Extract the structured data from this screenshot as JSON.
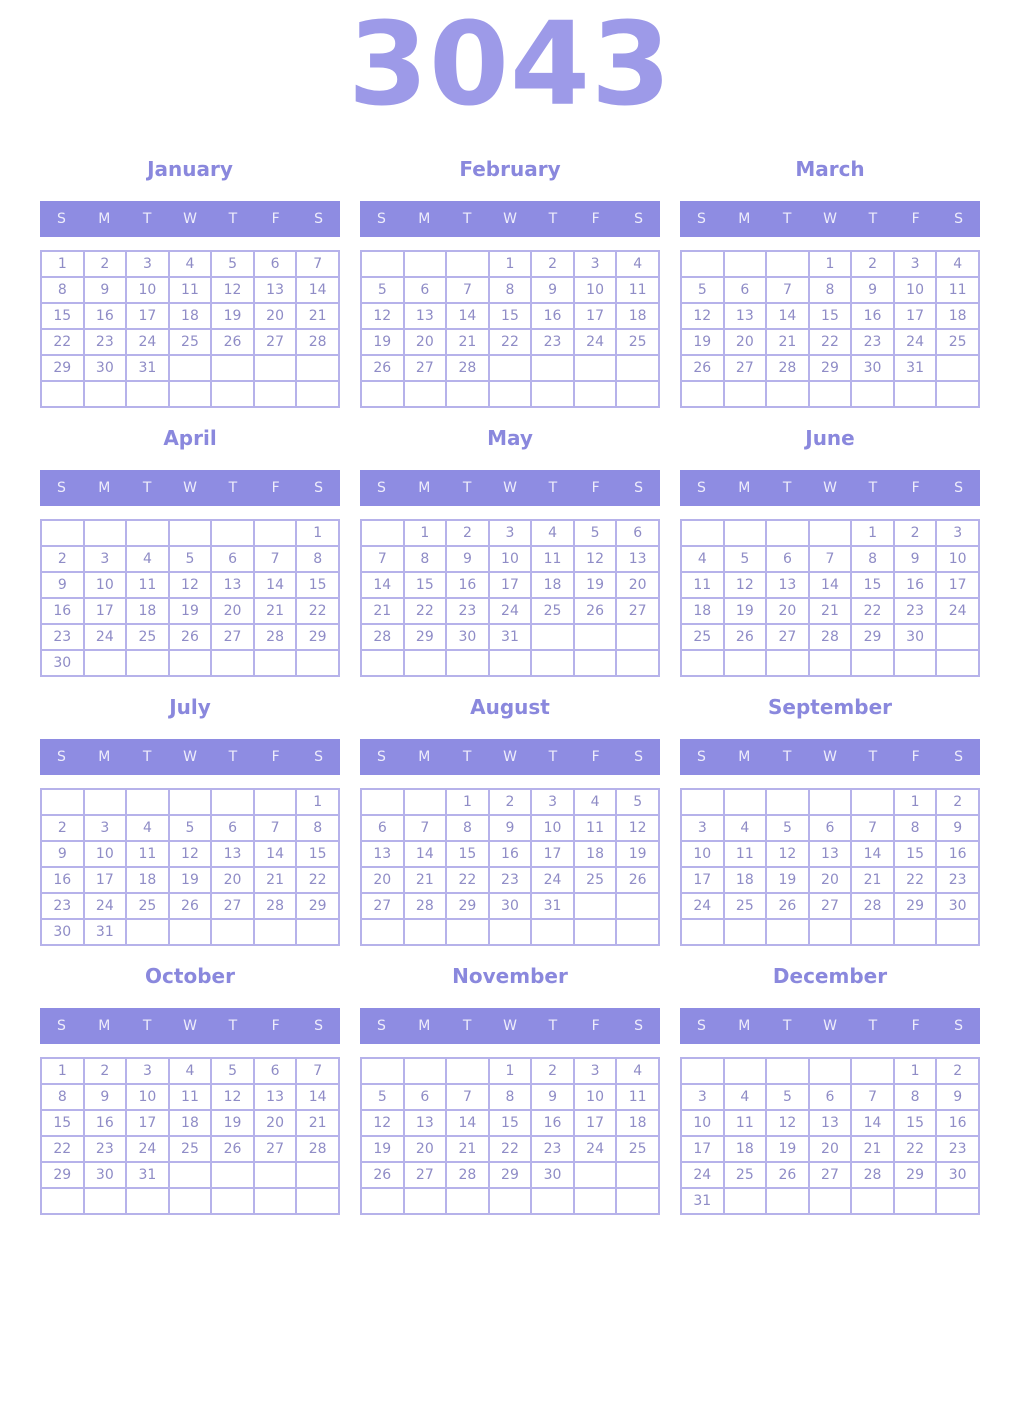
{
  "year_title": "3043",
  "weekday_headers": [
    "S",
    "M",
    "T",
    "W",
    "T",
    "F",
    "S"
  ],
  "colors": {
    "background": "#ffffff",
    "accent": "#8e8ce2",
    "year_title": "#9d9ae8",
    "month_title": "#8a88dd",
    "day_number": "#8f8cc6",
    "cell_border": "#b6b2ea",
    "weekday_text": "#eeedfb"
  },
  "months": [
    {
      "name": "January",
      "grid": [
        [
          "1",
          "2",
          "3",
          "4",
          "5",
          "6",
          "7"
        ],
        [
          "8",
          "9",
          "10",
          "11",
          "12",
          "13",
          "14"
        ],
        [
          "15",
          "16",
          "17",
          "18",
          "19",
          "20",
          "21"
        ],
        [
          "22",
          "23",
          "24",
          "25",
          "26",
          "27",
          "28"
        ],
        [
          "29",
          "30",
          "31",
          "",
          "",
          "",
          ""
        ],
        [
          "",
          "",
          "",
          "",
          "",
          "",
          ""
        ]
      ]
    },
    {
      "name": "February",
      "grid": [
        [
          "",
          "",
          "",
          "1",
          "2",
          "3",
          "4"
        ],
        [
          "5",
          "6",
          "7",
          "8",
          "9",
          "10",
          "11"
        ],
        [
          "12",
          "13",
          "14",
          "15",
          "16",
          "17",
          "18"
        ],
        [
          "19",
          "20",
          "21",
          "22",
          "23",
          "24",
          "25"
        ],
        [
          "26",
          "27",
          "28",
          "",
          "",
          "",
          ""
        ],
        [
          "",
          "",
          "",
          "",
          "",
          "",
          ""
        ]
      ]
    },
    {
      "name": "March",
      "grid": [
        [
          "",
          "",
          "",
          "1",
          "2",
          "3",
          "4"
        ],
        [
          "5",
          "6",
          "7",
          "8",
          "9",
          "10",
          "11"
        ],
        [
          "12",
          "13",
          "14",
          "15",
          "16",
          "17",
          "18"
        ],
        [
          "19",
          "20",
          "21",
          "22",
          "23",
          "24",
          "25"
        ],
        [
          "26",
          "27",
          "28",
          "29",
          "30",
          "31",
          ""
        ],
        [
          "",
          "",
          "",
          "",
          "",
          "",
          ""
        ]
      ]
    },
    {
      "name": "April",
      "grid": [
        [
          "",
          "",
          "",
          "",
          "",
          "",
          "1"
        ],
        [
          "2",
          "3",
          "4",
          "5",
          "6",
          "7",
          "8"
        ],
        [
          "9",
          "10",
          "11",
          "12",
          "13",
          "14",
          "15"
        ],
        [
          "16",
          "17",
          "18",
          "19",
          "20",
          "21",
          "22"
        ],
        [
          "23",
          "24",
          "25",
          "26",
          "27",
          "28",
          "29"
        ],
        [
          "30",
          "",
          "",
          "",
          "",
          "",
          ""
        ]
      ]
    },
    {
      "name": "May",
      "grid": [
        [
          "",
          "1",
          "2",
          "3",
          "4",
          "5",
          "6"
        ],
        [
          "7",
          "8",
          "9",
          "10",
          "11",
          "12",
          "13"
        ],
        [
          "14",
          "15",
          "16",
          "17",
          "18",
          "19",
          "20"
        ],
        [
          "21",
          "22",
          "23",
          "24",
          "25",
          "26",
          "27"
        ],
        [
          "28",
          "29",
          "30",
          "31",
          "",
          "",
          ""
        ],
        [
          "",
          "",
          "",
          "",
          "",
          "",
          ""
        ]
      ]
    },
    {
      "name": "June",
      "grid": [
        [
          "",
          "",
          "",
          "",
          "1",
          "2",
          "3"
        ],
        [
          "4",
          "5",
          "6",
          "7",
          "8",
          "9",
          "10"
        ],
        [
          "11",
          "12",
          "13",
          "14",
          "15",
          "16",
          "17"
        ],
        [
          "18",
          "19",
          "20",
          "21",
          "22",
          "23",
          "24"
        ],
        [
          "25",
          "26",
          "27",
          "28",
          "29",
          "30",
          ""
        ],
        [
          "",
          "",
          "",
          "",
          "",
          "",
          ""
        ]
      ]
    },
    {
      "name": "July",
      "grid": [
        [
          "",
          "",
          "",
          "",
          "",
          "",
          "1"
        ],
        [
          "2",
          "3",
          "4",
          "5",
          "6",
          "7",
          "8"
        ],
        [
          "9",
          "10",
          "11",
          "12",
          "13",
          "14",
          "15"
        ],
        [
          "16",
          "17",
          "18",
          "19",
          "20",
          "21",
          "22"
        ],
        [
          "23",
          "24",
          "25",
          "26",
          "27",
          "28",
          "29"
        ],
        [
          "30",
          "31",
          "",
          "",
          "",
          "",
          ""
        ]
      ]
    },
    {
      "name": "August",
      "grid": [
        [
          "",
          "",
          "1",
          "2",
          "3",
          "4",
          "5"
        ],
        [
          "6",
          "7",
          "8",
          "9",
          "10",
          "11",
          "12"
        ],
        [
          "13",
          "14",
          "15",
          "16",
          "17",
          "18",
          "19"
        ],
        [
          "20",
          "21",
          "22",
          "23",
          "24",
          "25",
          "26"
        ],
        [
          "27",
          "28",
          "29",
          "30",
          "31",
          "",
          ""
        ],
        [
          "",
          "",
          "",
          "",
          "",
          "",
          ""
        ]
      ]
    },
    {
      "name": "September",
      "grid": [
        [
          "",
          "",
          "",
          "",
          "",
          "1",
          "2"
        ],
        [
          "3",
          "4",
          "5",
          "6",
          "7",
          "8",
          "9"
        ],
        [
          "10",
          "11",
          "12",
          "13",
          "14",
          "15",
          "16"
        ],
        [
          "17",
          "18",
          "19",
          "20",
          "21",
          "22",
          "23"
        ],
        [
          "24",
          "25",
          "26",
          "27",
          "28",
          "29",
          "30"
        ],
        [
          "",
          "",
          "",
          "",
          "",
          "",
          ""
        ]
      ]
    },
    {
      "name": "October",
      "grid": [
        [
          "1",
          "2",
          "3",
          "4",
          "5",
          "6",
          "7"
        ],
        [
          "8",
          "9",
          "10",
          "11",
          "12",
          "13",
          "14"
        ],
        [
          "15",
          "16",
          "17",
          "18",
          "19",
          "20",
          "21"
        ],
        [
          "22",
          "23",
          "24",
          "25",
          "26",
          "27",
          "28"
        ],
        [
          "29",
          "30",
          "31",
          "",
          "",
          "",
          ""
        ],
        [
          "",
          "",
          "",
          "",
          "",
          "",
          ""
        ]
      ]
    },
    {
      "name": "November",
      "grid": [
        [
          "",
          "",
          "",
          "1",
          "2",
          "3",
          "4"
        ],
        [
          "5",
          "6",
          "7",
          "8",
          "9",
          "10",
          "11"
        ],
        [
          "12",
          "13",
          "14",
          "15",
          "16",
          "17",
          "18"
        ],
        [
          "19",
          "20",
          "21",
          "22",
          "23",
          "24",
          "25"
        ],
        [
          "26",
          "27",
          "28",
          "29",
          "30",
          "",
          ""
        ],
        [
          "",
          "",
          "",
          "",
          "",
          "",
          ""
        ]
      ]
    },
    {
      "name": "December",
      "grid": [
        [
          "",
          "",
          "",
          "",
          "",
          "1",
          "2"
        ],
        [
          "3",
          "4",
          "5",
          "6",
          "7",
          "8",
          "9"
        ],
        [
          "10",
          "11",
          "12",
          "13",
          "14",
          "15",
          "16"
        ],
        [
          "17",
          "18",
          "19",
          "20",
          "21",
          "22",
          "23"
        ],
        [
          "24",
          "25",
          "26",
          "27",
          "28",
          "29",
          "30"
        ],
        [
          "31",
          "",
          "",
          "",
          "",
          "",
          ""
        ]
      ]
    }
  ]
}
